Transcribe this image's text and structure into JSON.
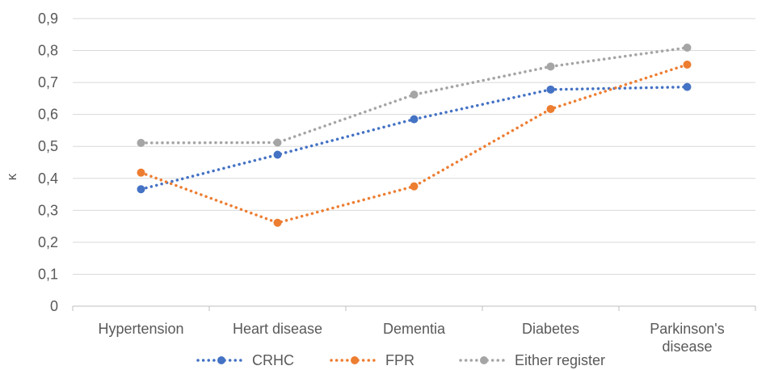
{
  "chart_data": {
    "type": "line",
    "categories": [
      "Hypertension",
      "Heart disease",
      "Dementia",
      "Diabetes",
      "Parkinson's disease"
    ],
    "category_lines": [
      [
        "Hypertension"
      ],
      [
        "Heart disease"
      ],
      [
        "Dementia"
      ],
      [
        "Diabetes"
      ],
      [
        "Parkinson's",
        "disease"
      ]
    ],
    "series": [
      {
        "name": "CRHC",
        "color": "#4472C4",
        "values": [
          0.366,
          0.474,
          0.585,
          0.678,
          0.686
        ]
      },
      {
        "name": "FPR",
        "color": "#ED7D31",
        "values": [
          0.418,
          0.261,
          0.375,
          0.617,
          0.756
        ]
      },
      {
        "name": "Either register",
        "color": "#A5A5A5",
        "values": [
          0.511,
          0.512,
          0.662,
          0.75,
          0.809
        ]
      }
    ],
    "ylabel": "κ",
    "ylim": [
      0,
      0.9
    ],
    "yticks": [
      "0",
      "0,1",
      "0,2",
      "0,3",
      "0,4",
      "0,5",
      "0,6",
      "0,7",
      "0,8",
      "0,9"
    ],
    "grid": true,
    "legend": "bottom",
    "line_style": "dotted",
    "marker": "circle"
  }
}
